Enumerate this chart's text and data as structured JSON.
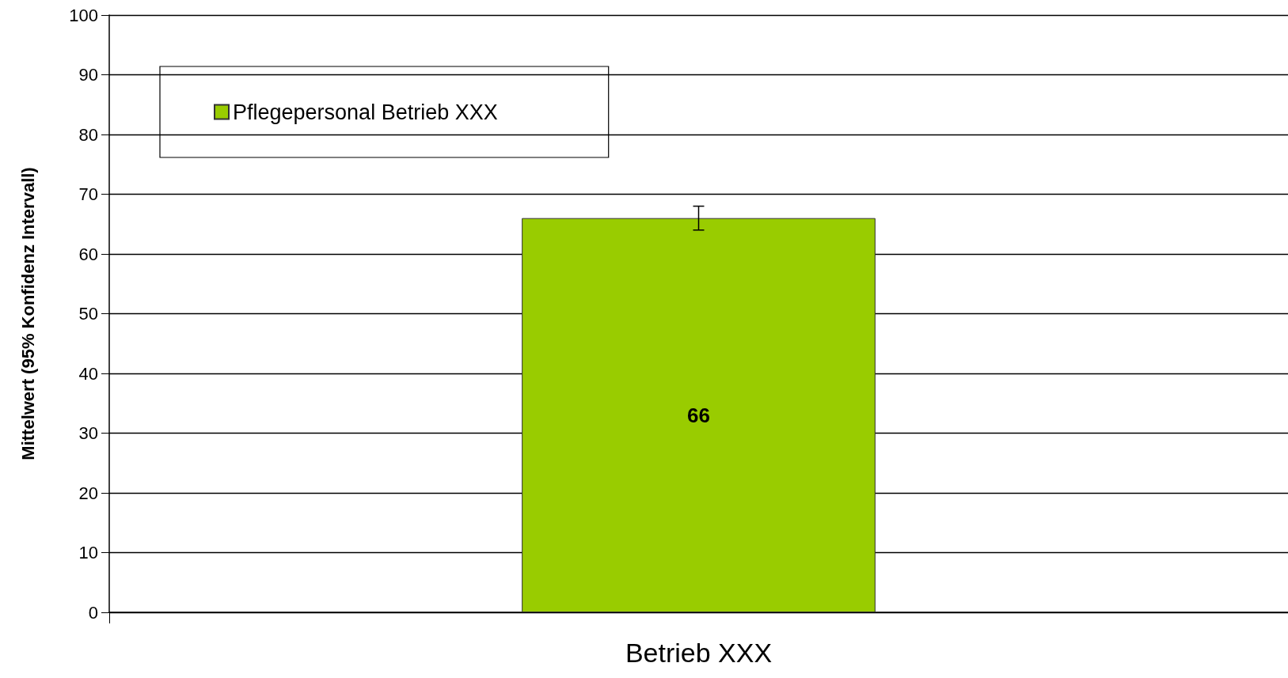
{
  "chart_data": {
    "type": "bar",
    "ylabel": "Mittelwert (95% Konfidenz Intervall)",
    "categories": [
      "Betrieb XXX"
    ],
    "series": [
      {
        "name": "Pflegepersonal Betrieb XXX",
        "color": "#99cc00",
        "values": [
          66
        ],
        "errors": [
          [
            64,
            68
          ]
        ]
      }
    ],
    "ylim": [
      0,
      100
    ],
    "yticks": [
      0,
      10,
      20,
      30,
      40,
      50,
      60,
      70,
      80,
      90,
      100
    ],
    "grid": "y",
    "legend": "top left",
    "data_labels": true
  }
}
